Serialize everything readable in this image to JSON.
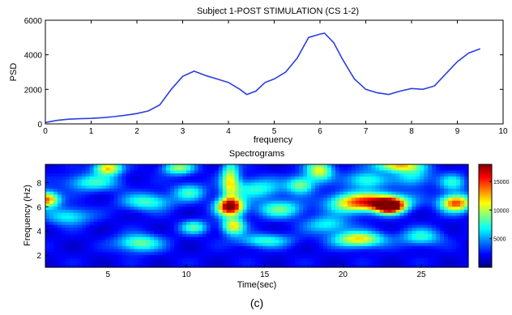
{
  "figure_label": "(c)",
  "colors": {
    "line": "#2b3ee0",
    "axis": "#000000",
    "colormap": [
      "#00007f",
      "#0000ff",
      "#007fff",
      "#00ffff",
      "#7fff7f",
      "#ffff00",
      "#ff7f00",
      "#ff0000",
      "#7f0000"
    ]
  },
  "chart_data": [
    {
      "type": "line",
      "title": "Subject 1-POST STIMULATION (CS 1-2)",
      "xlabel": "frequency",
      "ylabel": "PSD",
      "xlim": [
        0,
        10
      ],
      "ylim": [
        0,
        6000
      ],
      "xticks": [
        0,
        1,
        2,
        3,
        4,
        5,
        6,
        7,
        8,
        9,
        10
      ],
      "yticks": [
        0,
        2000,
        4000,
        6000
      ],
      "grid": false,
      "series": [
        {
          "x": [
            0,
            0.25,
            0.5,
            0.75,
            1.0,
            1.25,
            1.5,
            1.75,
            2.0,
            2.25,
            2.5,
            2.75,
            3.0,
            3.25,
            3.5,
            3.75,
            4.0,
            4.25,
            4.4,
            4.6,
            4.8,
            5.0,
            5.25,
            5.5,
            5.75,
            6.0,
            6.1,
            6.3,
            6.5,
            6.75,
            7.0,
            7.25,
            7.5,
            7.75,
            8.0,
            8.25,
            8.5,
            8.75,
            9.0,
            9.25,
            9.5
          ],
          "y": [
            80,
            200,
            270,
            300,
            320,
            360,
            420,
            500,
            600,
            750,
            1100,
            2000,
            2750,
            3050,
            2800,
            2600,
            2400,
            2000,
            1700,
            1900,
            2400,
            2600,
            3000,
            3800,
            5000,
            5200,
            5250,
            4700,
            3700,
            2600,
            2000,
            1800,
            1700,
            1900,
            2050,
            2000,
            2200,
            2900,
            3600,
            4100,
            4350
          ]
        }
      ]
    },
    {
      "type": "heatmap",
      "title": "Spectrograms",
      "xlabel": "Time(sec)",
      "ylabel": "Frequency (Hz)",
      "xlim": [
        1,
        28
      ],
      "ylim": [
        1,
        9.5
      ],
      "xticks": [
        5,
        10,
        15,
        20,
        25
      ],
      "yticks": [
        2,
        4,
        6,
        8
      ],
      "colorbar_ticks": [
        5000,
        10000,
        15000
      ],
      "colorbar_range": [
        0,
        18000
      ],
      "grid": false,
      "background_value": 2000,
      "blobs": [
        {
          "t": 1.0,
          "f": 6.6,
          "st": 0.6,
          "sf": 0.45,
          "v": 13000
        },
        {
          "t": 2.5,
          "f": 5.2,
          "st": 1.0,
          "sf": 0.5,
          "v": 5200
        },
        {
          "t": 4.0,
          "f": 8.0,
          "st": 1.2,
          "sf": 0.5,
          "v": 5500
        },
        {
          "t": 5.0,
          "f": 9.2,
          "st": 0.6,
          "sf": 0.4,
          "v": 10500
        },
        {
          "t": 7.0,
          "f": 3.0,
          "st": 1.0,
          "sf": 0.5,
          "v": 7000
        },
        {
          "t": 7.5,
          "f": 6.4,
          "st": 1.1,
          "sf": 0.5,
          "v": 6000
        },
        {
          "t": 9.5,
          "f": 9.2,
          "st": 0.7,
          "sf": 0.4,
          "v": 7500
        },
        {
          "t": 10.5,
          "f": 4.3,
          "st": 0.6,
          "sf": 0.4,
          "v": 6000
        },
        {
          "t": 10.2,
          "f": 7.2,
          "st": 0.7,
          "sf": 0.5,
          "v": 5500
        },
        {
          "t": 12.8,
          "f": 6.0,
          "st": 0.6,
          "sf": 0.5,
          "v": 16500
        },
        {
          "t": 12.8,
          "f": 8.2,
          "st": 0.4,
          "sf": 1.2,
          "v": 8500
        },
        {
          "t": 13.0,
          "f": 4.4,
          "st": 0.5,
          "sf": 0.5,
          "v": 9500
        },
        {
          "t": 15.0,
          "f": 3.2,
          "st": 1.2,
          "sf": 0.4,
          "v": 5500
        },
        {
          "t": 14.5,
          "f": 7.5,
          "st": 1.2,
          "sf": 0.6,
          "v": 5500
        },
        {
          "t": 16.0,
          "f": 5.8,
          "st": 1.0,
          "sf": 0.5,
          "v": 6500
        },
        {
          "t": 17.3,
          "f": 7.8,
          "st": 0.6,
          "sf": 0.5,
          "v": 7000
        },
        {
          "t": 18.5,
          "f": 9.0,
          "st": 0.6,
          "sf": 0.6,
          "v": 9000
        },
        {
          "t": 19.0,
          "f": 4.5,
          "st": 1.0,
          "sf": 0.5,
          "v": 5000
        },
        {
          "t": 20.5,
          "f": 6.3,
          "st": 1.1,
          "sf": 0.6,
          "v": 8500
        },
        {
          "t": 21.0,
          "f": 3.3,
          "st": 1.1,
          "sf": 0.45,
          "v": 10000
        },
        {
          "t": 21.5,
          "f": 8.2,
          "st": 0.9,
          "sf": 0.5,
          "v": 6000
        },
        {
          "t": 22.5,
          "f": 6.4,
          "st": 1.2,
          "sf": 0.5,
          "v": 12000
        },
        {
          "t": 23.0,
          "f": 6.0,
          "st": 0.6,
          "sf": 0.4,
          "v": 15500
        },
        {
          "t": 23.5,
          "f": 9.4,
          "st": 1.0,
          "sf": 0.35,
          "v": 10000
        },
        {
          "t": 25.0,
          "f": 3.5,
          "st": 0.9,
          "sf": 0.5,
          "v": 5500
        },
        {
          "t": 24.5,
          "f": 8.5,
          "st": 0.8,
          "sf": 0.6,
          "v": 5000
        },
        {
          "t": 27.2,
          "f": 6.3,
          "st": 0.7,
          "sf": 0.5,
          "v": 13000
        },
        {
          "t": 27.0,
          "f": 8.0,
          "st": 0.6,
          "sf": 0.5,
          "v": 5000
        }
      ]
    }
  ]
}
